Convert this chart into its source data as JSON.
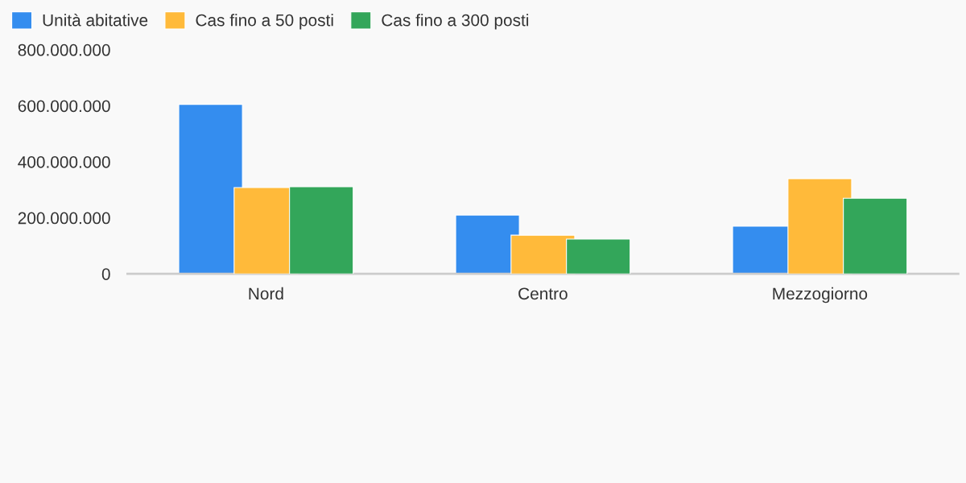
{
  "chart_data": {
    "type": "bar",
    "categories": [
      "Nord",
      "Centro",
      "Mezzogiorno"
    ],
    "series": [
      {
        "name": "Unità abitative",
        "color": "#348def",
        "values": [
          605000000,
          210000000,
          170000000
        ]
      },
      {
        "name": "Cas fino a 50 posti",
        "color": "#ffba3a",
        "values": [
          308000000,
          138000000,
          340000000
        ]
      },
      {
        "name": "Cas fino a 300 posti",
        "color": "#33a65a",
        "values": [
          311000000,
          124000000,
          270000000
        ]
      }
    ],
    "ylim": [
      0,
      800000000
    ],
    "yticks": [
      {
        "value": 0,
        "label": "0"
      },
      {
        "value": 200000000,
        "label": "200.000.000"
      },
      {
        "value": 400000000,
        "label": "400.000.000"
      },
      {
        "value": 600000000,
        "label": "600.000.000"
      },
      {
        "value": 800000000,
        "label": "800.000.000"
      }
    ],
    "grid": false,
    "legend": "top left"
  }
}
